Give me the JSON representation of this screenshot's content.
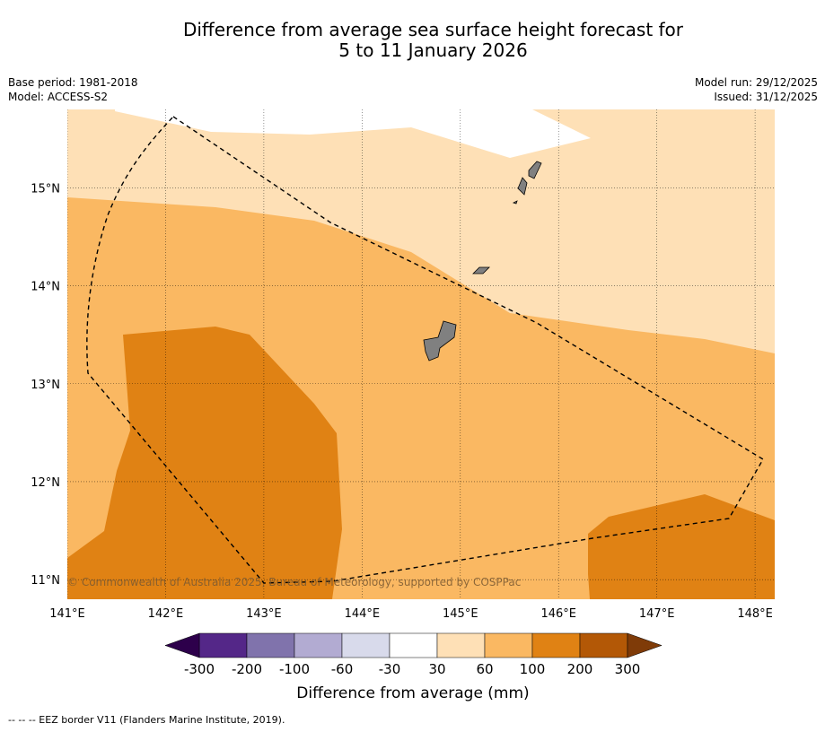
{
  "title": {
    "line1": "Difference from average sea surface height forecast for",
    "line2": "5 to 11 January 2026"
  },
  "meta_left": {
    "base_period": "Base period: 1981-2018",
    "model": "Model: ACCESS-S2"
  },
  "meta_right": {
    "model_run": "Model run: 29/12/2025",
    "issued": "Issued: 31/12/2025"
  },
  "map": {
    "lon_ticks": [
      "141°E",
      "142°E",
      "143°E",
      "144°E",
      "145°E",
      "146°E",
      "147°E",
      "148°E"
    ],
    "lat_ticks": [
      "15°N",
      "14°N",
      "13°N",
      "12°N",
      "11°N"
    ],
    "extent": {
      "lon_min": 141,
      "lon_max": 148.2,
      "lat_min": 10.8,
      "lat_max": 15.8
    },
    "copyright": "© Commonwealth of Australia 2025, Bureau of Meteorology, supported by COSPPac"
  },
  "colorbar": {
    "label": "Difference from average (mm)",
    "ticks": [
      "-300",
      "-200",
      "-100",
      "-60",
      "-30",
      "30",
      "60",
      "100",
      "200",
      "300"
    ],
    "colors": {
      "below_min": "#2d004b",
      "b1": "#542788",
      "b2": "#8073ac",
      "b3": "#b2abd2",
      "b4": "#d8daeb",
      "b5": "#ffffff",
      "b6": "#fee0b6",
      "b7": "#fab862",
      "b8": "#e08214",
      "b9": "#b35806",
      "above_max": "#7f3b08"
    }
  },
  "colors": {
    "land": "#808080",
    "eez_line": "#000000"
  },
  "footer": {
    "legend": "--  --  -- EEZ border V11 (Flanders Marine Institute, 2019)."
  }
}
